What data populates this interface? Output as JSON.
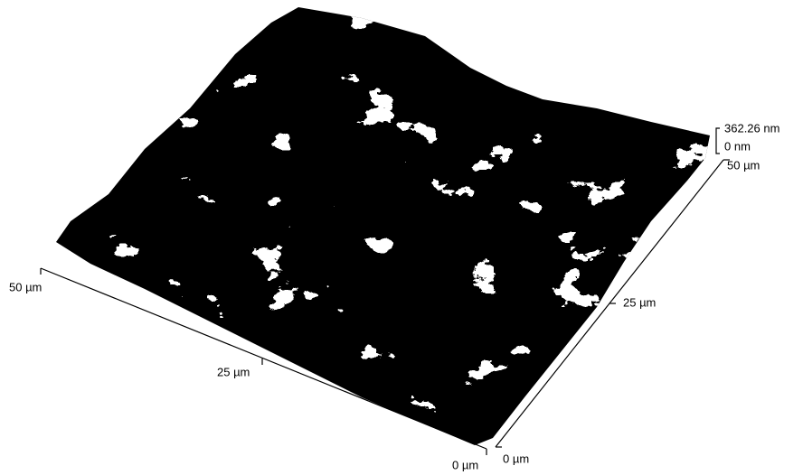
{
  "z_scale": {
    "max": "362.26 nm",
    "min": "0 nm"
  },
  "x_axis": {
    "ticks": [
      "0 µm",
      "25 µm",
      "50 µm"
    ]
  },
  "y_axis": {
    "ticks": [
      "0 µm",
      "25 µm",
      "50 µm"
    ]
  }
}
